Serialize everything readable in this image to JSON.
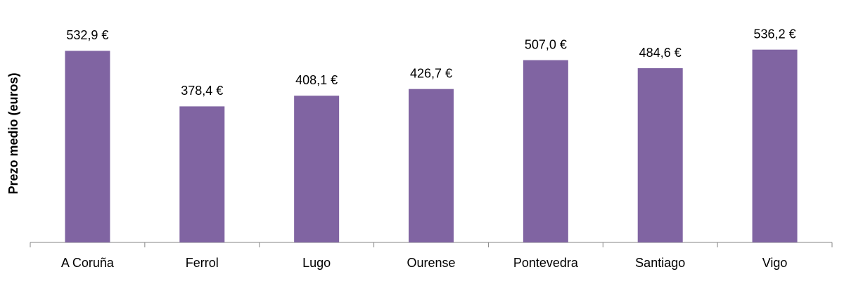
{
  "chart_data": {
    "type": "bar",
    "y_label": "Prezo medio (euros)",
    "categories": [
      "A Coruña",
      "Ferrol",
      "Lugo",
      "Ourense",
      "Pontevedra",
      "Santiago",
      "Vigo"
    ],
    "values": [
      532.9,
      378.4,
      408.1,
      426.7,
      507.0,
      484.6,
      536.2
    ],
    "value_labels": [
      "532,9 €",
      "378,4 €",
      "408,1 €",
      "426,7 €",
      "507,0 €",
      "484,6 €",
      "536,2 €"
    ],
    "color": "#8064a2",
    "ylim": [
      0,
      600
    ]
  }
}
